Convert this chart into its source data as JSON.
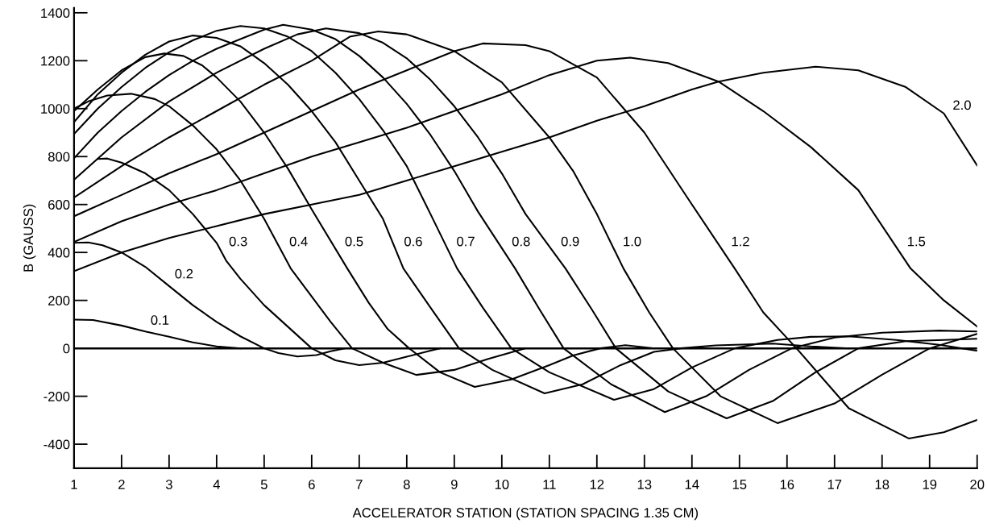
{
  "chart_data": {
    "type": "line",
    "xlabel": "ACCELERATOR STATION (STATION SPACING 1.35 CM)",
    "ylabel": "B (GAUSS)",
    "xlim": [
      1,
      20
    ],
    "ylim": [
      -500,
      1420
    ],
    "xticks": [
      1,
      2,
      3,
      4,
      5,
      6,
      7,
      8,
      9,
      10,
      11,
      12,
      13,
      14,
      15,
      16,
      17,
      18,
      19,
      20
    ],
    "yticks": [
      -400,
      -200,
      0,
      200,
      400,
      600,
      800,
      1000,
      1200,
      1400
    ],
    "grid": false,
    "legend": false,
    "marker": "none",
    "line_style": "solid",
    "ref_lines": [
      {
        "axis": "y",
        "value": 0,
        "color": "#000000"
      }
    ],
    "series": [
      {
        "name": "0.1",
        "color": "#000000",
        "x": [
          1,
          1.4,
          2,
          2.5,
          3,
          3.5,
          4,
          4.5
        ],
        "values": [
          120,
          118,
          95,
          70,
          48,
          25,
          8,
          0
        ]
      },
      {
        "name": "0.2",
        "color": "#000000",
        "x": [
          1,
          1.3,
          1.6,
          2,
          2.5,
          3,
          3.5,
          4,
          4.5,
          5,
          5.3,
          5.7,
          6.1,
          6.4,
          6.7
        ],
        "values": [
          440,
          442,
          430,
          400,
          340,
          260,
          180,
          110,
          50,
          0,
          -20,
          -34,
          -28,
          -12,
          0
        ]
      },
      {
        "name": "0.3",
        "color": "#000000",
        "x": [
          1.5,
          1.7,
          2,
          2.5,
          3,
          3.5,
          4,
          4.2,
          4.5,
          5,
          5.5,
          6,
          6.5,
          7,
          7.5,
          8,
          8.5,
          8.7
        ],
        "values": [
          790,
          792,
          775,
          730,
          660,
          560,
          440,
          366,
          290,
          180,
          90,
          0,
          -50,
          -70,
          -60,
          -35,
          -10,
          0
        ]
      },
      {
        "name": "0.4",
        "color": "#000000",
        "x": [
          1,
          1.3,
          1.7,
          2.2,
          2.7,
          3,
          3.5,
          4,
          4.5,
          5,
          5.56,
          5.94,
          6.4,
          6.85,
          7.5,
          8.2,
          9,
          9.7,
          10.5
        ],
        "values": [
          1000,
          1030,
          1055,
          1062,
          1040,
          1010,
          930,
          830,
          700,
          540,
          333,
          232,
          110,
          0,
          -60,
          -111,
          -90,
          -45,
          0
        ]
      },
      {
        "name": "0.5",
        "color": "#000000",
        "x": [
          1,
          1.5,
          2,
          2.5,
          2.9,
          3.3,
          3.7,
          4,
          4.5,
          5,
          5.5,
          6,
          6.75,
          7.2,
          7.6,
          8.05,
          8.7,
          9.43,
          10.2,
          11,
          11.5,
          12.07,
          12.6,
          13.2
        ],
        "values": [
          990,
          1080,
          1160,
          1215,
          1230,
          1220,
          1180,
          1130,
          1030,
          900,
          750,
          580,
          333,
          190,
          80,
          0,
          -100,
          -161,
          -130,
          -70,
          -30,
          0,
          13,
          0
        ]
      },
      {
        "name": "0.6",
        "color": "#000000",
        "x": [
          1,
          1.5,
          2,
          2.5,
          3,
          3.5,
          4,
          4.5,
          5,
          5.5,
          6,
          6.5,
          7,
          7.5,
          7.93,
          8.5,
          9.1,
          9.8,
          10.9,
          11.7,
          12.5,
          13.2,
          13.76,
          14.5,
          15.7,
          16.5,
          17.3
        ],
        "values": [
          944,
          1060,
          1150,
          1225,
          1280,
          1305,
          1295,
          1260,
          1190,
          1100,
          990,
          860,
          700,
          540,
          333,
          170,
          0,
          -90,
          -188,
          -150,
          -70,
          -15,
          0,
          12,
          20,
          8,
          0
        ]
      },
      {
        "name": "0.7",
        "color": "#000000",
        "x": [
          1,
          1.5,
          2,
          2.5,
          3,
          3.5,
          4,
          4.5,
          5,
          5.5,
          6,
          6.5,
          7,
          7.5,
          8,
          8.5,
          9.06,
          9.6,
          10.2,
          11,
          12.36,
          13.2,
          14,
          14.9,
          15.8,
          16.5,
          17.3,
          18.3,
          19.2,
          20
        ],
        "values": [
          894,
          1000,
          1090,
          1170,
          1235,
          1285,
          1325,
          1345,
          1335,
          1300,
          1240,
          1150,
          1040,
          910,
          760,
          560,
          333,
          170,
          0,
          -100,
          -215,
          -170,
          -80,
          0,
          35,
          48,
          50,
          35,
          15,
          -10
        ]
      },
      {
        "name": "0.8",
        "color": "#000000",
        "x": [
          1,
          1.5,
          2,
          2.5,
          3,
          3.5,
          4,
          4.5,
          5,
          5.4,
          6,
          6.5,
          7,
          7.5,
          8,
          8.5,
          9,
          9.5,
          10.28,
          10.8,
          11.3,
          12.3,
          13.43,
          14.3,
          15.2,
          16.1,
          17,
          18,
          19.2,
          20
        ],
        "values": [
          793,
          900,
          990,
          1070,
          1140,
          1200,
          1250,
          1290,
          1330,
          1350,
          1330,
          1290,
          1220,
          1130,
          1020,
          890,
          740,
          570,
          333,
          160,
          0,
          -150,
          -266,
          -200,
          -90,
          0,
          45,
          65,
          74,
          70
        ]
      },
      {
        "name": "0.9",
        "color": "#000000",
        "x": [
          1,
          2,
          3,
          4,
          5,
          5.7,
          6.3,
          7,
          7.5,
          8,
          8.5,
          9,
          9.5,
          10,
          10.5,
          11.34,
          11.9,
          12.4,
          13.5,
          14.73,
          15.7,
          16.6,
          17.5,
          18.5,
          19.3,
          20
        ],
        "values": [
          703,
          880,
          1030,
          1150,
          1250,
          1310,
          1335,
          1315,
          1275,
          1210,
          1120,
          1010,
          880,
          730,
          560,
          333,
          160,
          0,
          -180,
          -292,
          -220,
          -100,
          0,
          30,
          35,
          40
        ]
      },
      {
        "name": "1.0",
        "color": "#000000",
        "x": [
          1,
          2,
          3,
          4,
          5,
          6,
          6.8,
          7.4,
          8,
          9,
          10,
          11,
          11.5,
          12,
          12.56,
          13.1,
          13.6,
          14.6,
          15.8,
          17,
          18,
          19,
          20
        ],
        "values": [
          629,
          760,
          880,
          990,
          1100,
          1200,
          1300,
          1322,
          1310,
          1240,
          1110,
          880,
          740,
          560,
          333,
          150,
          0,
          -200,
          -312,
          -230,
          -110,
          0,
          60
        ]
      },
      {
        "name": "1.2",
        "color": "#000000",
        "x": [
          1,
          2,
          3,
          4,
          5,
          6,
          7,
          8,
          9,
          9.6,
          10.5,
          11,
          12,
          13,
          14,
          14.9,
          15.5,
          16.2,
          17.3,
          18.56,
          19.3,
          20
        ],
        "values": [
          551,
          640,
          730,
          810,
          900,
          990,
          1080,
          1160,
          1240,
          1272,
          1265,
          1240,
          1130,
          900,
          600,
          333,
          150,
          0,
          -250,
          -376,
          -350,
          -299
        ]
      },
      {
        "name": "1.5",
        "color": "#000000",
        "x": [
          1,
          2,
          3,
          4,
          5,
          6,
          7,
          8,
          9,
          10,
          11,
          12,
          12.7,
          13.5,
          14.56,
          15.5,
          16.5,
          17.5,
          18.6,
          19.3,
          20
        ],
        "values": [
          444,
          530,
          600,
          660,
          730,
          800,
          860,
          920,
          990,
          1060,
          1140,
          1200,
          1213,
          1190,
          1113,
          990,
          840,
          660,
          333,
          200,
          91
        ]
      },
      {
        "name": "2.0",
        "color": "#000000",
        "x": [
          1,
          2,
          3,
          4,
          5,
          6,
          7,
          8,
          9,
          10,
          11,
          12,
          13,
          14,
          14.56,
          15.5,
          16.6,
          17.5,
          18.5,
          19.3,
          20
        ],
        "values": [
          322,
          400,
          460,
          510,
          560,
          600,
          640,
          700,
          760,
          820,
          880,
          950,
          1010,
          1080,
          1113,
          1150,
          1175,
          1160,
          1090,
          980,
          763
        ]
      }
    ]
  }
}
